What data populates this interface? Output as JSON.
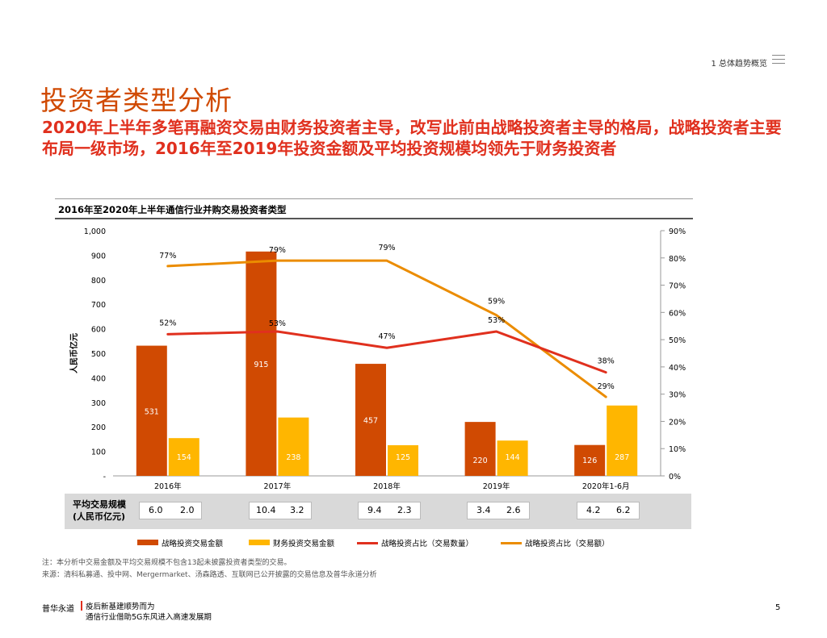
{
  "header": {
    "section": "1 总体趋势概览",
    "menu_icon": "hamburger-icon"
  },
  "title": "投资者类型分析",
  "subtitle": "2020年上半年多笔再融资交易由财务投资者主导，改写此前由战略投资者主导的格局，战略投资者主要布局一级市场，2016年至2019年投资金额及平均投资规模均领先于财务投资者",
  "chart_data": {
    "type": "bar",
    "title": "2016年至2020年上半年通信行业并购交易投资者类型",
    "categories": [
      "2016年",
      "2017年",
      "2018年",
      "2019年",
      "2020年1-6月"
    ],
    "ylabel": "人民币亿元",
    "ylim": [
      0,
      1000
    ],
    "y_ticks": [
      "-",
      "100",
      "200",
      "300",
      "400",
      "500",
      "600",
      "700",
      "800",
      "900",
      "1,000"
    ],
    "y2lim": [
      0,
      90
    ],
    "y2_ticks": [
      "0%",
      "10%",
      "20%",
      "30%",
      "40%",
      "50%",
      "60%",
      "70%",
      "80%",
      "90%"
    ],
    "series": [
      {
        "name": "战略投资交易金额",
        "kind": "bar",
        "color": "#d04a02",
        "values": [
          531,
          915,
          457,
          220,
          126
        ],
        "labels": [
          "531",
          "915",
          "457",
          "220",
          "126"
        ]
      },
      {
        "name": "财务投资交易金额",
        "kind": "bar",
        "color": "#ffb600",
        "values": [
          154,
          238,
          125,
          144,
          287
        ],
        "labels": [
          "154",
          "238",
          "125",
          "144",
          "287"
        ]
      },
      {
        "name": "战略投资占比（交易数量）",
        "kind": "line",
        "axis": "right",
        "color": "#e0301e",
        "values": [
          52,
          53,
          47,
          53,
          38
        ],
        "labels": [
          "52%",
          "53%",
          "47%",
          "53%",
          "38%"
        ]
      },
      {
        "name": "战略投资占比（交易额）",
        "kind": "line",
        "axis": "right",
        "color": "#eb8c00",
        "values": [
          77,
          79,
          79,
          59,
          29
        ],
        "labels": [
          "77%",
          "79%",
          "79%",
          "59%",
          "29%"
        ]
      }
    ],
    "average_scale": {
      "label_line1": "平均交易规模",
      "label_line2": "(人民币亿元)",
      "strategic": [
        "6.0",
        "10.4",
        "9.4",
        "3.4",
        "4.2"
      ],
      "financial": [
        "2.0",
        "3.2",
        "2.3",
        "2.6",
        "6.2"
      ]
    }
  },
  "notes": {
    "note": "注：本分析中交易金额及平均交易规模不包含13起未披露投资者类型的交易。",
    "source": "来源：清科私募通、投中网、Mergermarket、汤森路透、互联网已公开披露的交易信息及普华永道分析"
  },
  "footer": {
    "brand": "普华永道",
    "report_line1": "疫后新基建顺势而为",
    "report_line2": "通信行业借助5G东风进入高速发展期",
    "page_number": "5"
  }
}
